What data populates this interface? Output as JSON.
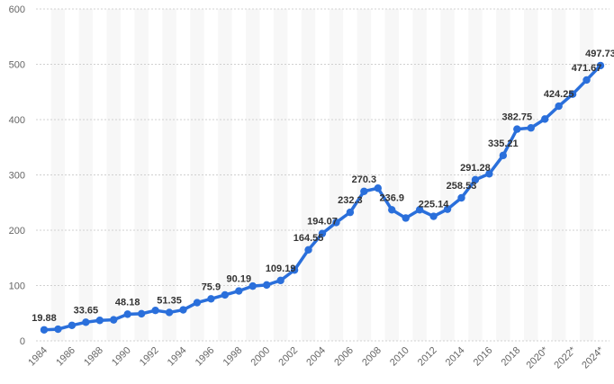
{
  "chart_data": {
    "type": "line",
    "grid": true,
    "ylim": [
      0,
      600
    ],
    "yticks": [
      0,
      100,
      200,
      300,
      400,
      500,
      600
    ],
    "xticks": [
      "1984",
      "1986",
      "1988",
      "1990",
      "1992",
      "1994",
      "1996",
      "1998",
      "2000",
      "2002",
      "2004",
      "2006",
      "2008",
      "2010",
      "2012",
      "2014",
      "2016",
      "2018",
      "2020*",
      "2022*",
      "2024*"
    ],
    "x": [
      "1984",
      "1985",
      "1986",
      "1987",
      "1988",
      "1989",
      "1990",
      "1991",
      "1992",
      "1993",
      "1994",
      "1995",
      "1996",
      "1997",
      "1998",
      "1999",
      "2000",
      "2001",
      "2002",
      "2003",
      "2004",
      "2005",
      "2006",
      "2007",
      "2008",
      "2009",
      "2010",
      "2011",
      "2012",
      "2013",
      "2014",
      "2015",
      "2016",
      "2017",
      "2018",
      "2019",
      "2020*",
      "2021*",
      "2022*",
      "2023*",
      "2024*"
    ],
    "series": [
      {
        "values": [
          19.88,
          21,
          28,
          33.65,
          37,
          38,
          48.18,
          49,
          55,
          51.35,
          56,
          69,
          75.9,
          83,
          90.19,
          99,
          101,
          109.19,
          128,
          164.55,
          194.07,
          214,
          232.3,
          270.3,
          276,
          236.9,
          222,
          237,
          225.14,
          238,
          258.53,
          291.28,
          302,
          335.21,
          382.75,
          385,
          401,
          424.25,
          446,
          471.67,
          497.73
        ],
        "color": "#2a6fdb"
      }
    ],
    "data_labels": [
      {
        "x": "1984",
        "value": 19.88,
        "text": "19.88"
      },
      {
        "x": "1987",
        "value": 33.65,
        "text": "33.65"
      },
      {
        "x": "1990",
        "value": 48.18,
        "text": "48.18"
      },
      {
        "x": "1993",
        "value": 51.35,
        "text": "51.35"
      },
      {
        "x": "1996",
        "value": 75.9,
        "text": "75.9"
      },
      {
        "x": "1998",
        "value": 90.19,
        "text": "90.19"
      },
      {
        "x": "2001",
        "value": 109.19,
        "text": "109.19"
      },
      {
        "x": "2003",
        "value": 164.55,
        "text": "164.55"
      },
      {
        "x": "2004",
        "value": 194.07,
        "text": "194.07"
      },
      {
        "x": "2006",
        "value": 232.3,
        "text": "232.3"
      },
      {
        "x": "2007",
        "value": 270.3,
        "text": "270.3"
      },
      {
        "x": "2009",
        "value": 236.9,
        "text": "236.9"
      },
      {
        "x": "2012",
        "value": 225.14,
        "text": "225.14"
      },
      {
        "x": "2014",
        "value": 258.53,
        "text": "258.53"
      },
      {
        "x": "2015",
        "value": 291.28,
        "text": "291.28"
      },
      {
        "x": "2017",
        "value": 335.21,
        "text": "335.21"
      },
      {
        "x": "2018",
        "value": 382.75,
        "text": "382.75"
      },
      {
        "x": "2021*",
        "value": 424.25,
        "text": "424.25"
      },
      {
        "x": "2023*",
        "value": 471.67,
        "text": "471.67"
      },
      {
        "x": "2024*",
        "value": 497.73,
        "text": "497.73"
      }
    ]
  }
}
